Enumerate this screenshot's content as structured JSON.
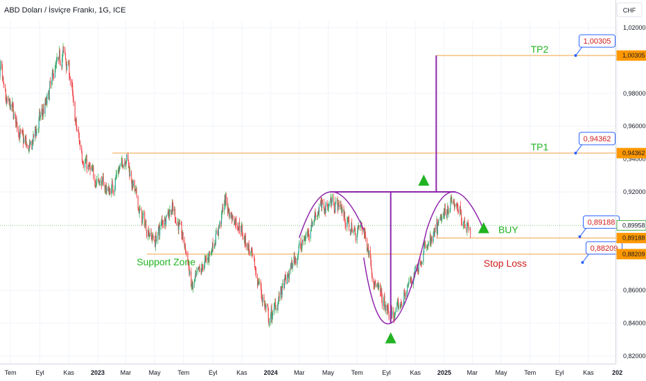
{
  "header": {
    "title": "ABD Doları / İsviçre Frankı, 1G, ICE",
    "currency": "CHF"
  },
  "chart_data": {
    "type": "candlestick",
    "instrument": "ABD Doları / İsviçre Frankı",
    "interval": "1G",
    "source": "ICE",
    "ylim": [
      0.815,
      1.025
    ],
    "y_ticks": [
      "1,02000",
      "0,98000",
      "0,96000",
      "0,94000",
      "0,92000",
      "0,86000",
      "0,84000",
      "0,82000"
    ],
    "y_tick_values": [
      1.02,
      0.98,
      0.96,
      0.94,
      0.92,
      0.86,
      0.84,
      0.82
    ],
    "x_ticks": [
      {
        "label": "Tem",
        "date": "2022-07-01",
        "bold": false
      },
      {
        "label": "Eyl",
        "date": "2022-09-01",
        "bold": false
      },
      {
        "label": "Kas",
        "date": "2022-11-01",
        "bold": false
      },
      {
        "label": "2023",
        "date": "2023-01-01",
        "bold": true
      },
      {
        "label": "Mar",
        "date": "2023-03-01",
        "bold": false
      },
      {
        "label": "May",
        "date": "2023-05-01",
        "bold": false
      },
      {
        "label": "Tem",
        "date": "2023-07-01",
        "bold": false
      },
      {
        "label": "Eyl",
        "date": "2023-09-01",
        "bold": false
      },
      {
        "label": "Kas",
        "date": "2023-11-01",
        "bold": false
      },
      {
        "label": "2024",
        "date": "2024-01-01",
        "bold": true
      },
      {
        "label": "Mar",
        "date": "2024-03-01",
        "bold": false
      },
      {
        "label": "May",
        "date": "2024-05-01",
        "bold": false
      },
      {
        "label": "Tem",
        "date": "2024-07-01",
        "bold": false
      },
      {
        "label": "Eyl",
        "date": "2024-09-01",
        "bold": false
      },
      {
        "label": "Kas",
        "date": "2024-11-01",
        "bold": false
      },
      {
        "label": "2025",
        "date": "2025-01-01",
        "bold": true
      },
      {
        "label": "Mar",
        "date": "2025-03-01",
        "bold": false
      },
      {
        "label": "May",
        "date": "2025-05-01",
        "bold": false
      },
      {
        "label": "Tem",
        "date": "2025-07-01",
        "bold": false
      },
      {
        "label": "Eyl",
        "date": "2025-09-01",
        "bold": false
      },
      {
        "label": "Kas",
        "date": "2025-11-01",
        "bold": false
      },
      {
        "label": "202",
        "date": "2026-01-01",
        "bold": true
      }
    ],
    "price_path": [
      [
        "2022-06-01",
        0.965
      ],
      [
        "2022-06-10",
        0.995
      ],
      [
        "2022-06-20",
        0.975
      ],
      [
        "2022-07-05",
        0.97
      ],
      [
        "2022-07-20",
        0.955
      ],
      [
        "2022-08-10",
        0.945
      ],
      [
        "2022-08-25",
        0.96
      ],
      [
        "2022-09-15",
        0.975
      ],
      [
        "2022-10-01",
        0.995
      ],
      [
        "2022-10-20",
        1.005
      ],
      [
        "2022-11-01",
        0.995
      ],
      [
        "2022-11-15",
        0.96
      ],
      [
        "2022-12-01",
        0.94
      ],
      [
        "2022-12-20",
        0.93
      ],
      [
        "2023-01-10",
        0.925
      ],
      [
        "2023-01-25",
        0.92
      ],
      [
        "2023-02-10",
        0.93
      ],
      [
        "2023-03-01",
        0.943
      ],
      [
        "2023-03-15",
        0.925
      ],
      [
        "2023-04-01",
        0.905
      ],
      [
        "2023-04-20",
        0.895
      ],
      [
        "2023-05-01",
        0.89
      ],
      [
        "2023-05-20",
        0.905
      ],
      [
        "2023-06-05",
        0.91
      ],
      [
        "2023-06-20",
        0.9
      ],
      [
        "2023-07-05",
        0.885
      ],
      [
        "2023-07-18",
        0.86
      ],
      [
        "2023-08-01",
        0.87
      ],
      [
        "2023-08-20",
        0.88
      ],
      [
        "2023-09-10",
        0.895
      ],
      [
        "2023-09-25",
        0.915
      ],
      [
        "2023-10-10",
        0.905
      ],
      [
        "2023-10-25",
        0.9
      ],
      [
        "2023-11-10",
        0.89
      ],
      [
        "2023-11-25",
        0.875
      ],
      [
        "2023-12-10",
        0.86
      ],
      [
        "2023-12-28",
        0.84
      ],
      [
        "2024-01-15",
        0.855
      ],
      [
        "2024-02-01",
        0.865
      ],
      [
        "2024-02-20",
        0.88
      ],
      [
        "2024-03-10",
        0.89
      ],
      [
        "2024-03-25",
        0.9
      ],
      [
        "2024-04-10",
        0.91
      ],
      [
        "2024-04-25",
        0.912
      ],
      [
        "2024-05-10",
        0.915
      ],
      [
        "2024-05-28",
        0.91
      ],
      [
        "2024-06-10",
        0.9
      ],
      [
        "2024-06-25",
        0.895
      ],
      [
        "2024-07-10",
        0.9
      ],
      [
        "2024-07-25",
        0.885
      ],
      [
        "2024-08-05",
        0.865
      ],
      [
        "2024-08-20",
        0.855
      ],
      [
        "2024-09-05",
        0.845
      ],
      [
        "2024-09-20",
        0.845
      ],
      [
        "2024-10-05",
        0.855
      ],
      [
        "2024-10-20",
        0.865
      ],
      [
        "2024-11-05",
        0.875
      ],
      [
        "2024-11-20",
        0.885
      ],
      [
        "2024-12-05",
        0.89
      ],
      [
        "2024-12-20",
        0.9
      ],
      [
        "2025-01-05",
        0.91
      ],
      [
        "2025-01-15",
        0.915
      ],
      [
        "2025-01-25",
        0.91
      ],
      [
        "2025-02-05",
        0.905
      ],
      [
        "2025-02-15",
        0.9
      ],
      [
        "2025-02-25",
        0.9
      ]
    ],
    "current_price": {
      "label": "0,89958",
      "value": 0.89958
    },
    "levels": [
      {
        "name": "TP2",
        "label": "1,00305",
        "value": 1.00305,
        "start": "2024-12-15"
      },
      {
        "name": "TP1",
        "label": "0,94362",
        "value": 0.94362,
        "start": "2023-02-01"
      },
      {
        "name": "BUY",
        "label": "0,89188",
        "value": 0.89188,
        "start": "2024-12-15"
      },
      {
        "name": "Stop Loss",
        "label": "0,88209",
        "value": 0.88209,
        "start": "2023-04-15"
      }
    ],
    "annotations": {
      "tp2_text": "TP2",
      "tp1_text": "TP1",
      "buy_text": "BUY",
      "stop_text": "Stop Loss",
      "support_text": "Support Zone",
      "tp2_callout": "1,00305",
      "tp1_callout": "0,94362",
      "buy_callout": "0,89188",
      "stop_callout": "0,88209"
    },
    "pattern": {
      "type": "cup-and-handle",
      "neckline": 0.92,
      "neckline_start": "2024-05-05",
      "neckline_end": "2025-01-25",
      "cup_bottom": 0.84,
      "cup_bottom_date": "2024-09-10",
      "target": 1.00305,
      "target_date": "2024-12-15",
      "arcs": [
        {
          "start": [
            "2024-03-01",
            0.892
          ],
          "peak": [
            "2024-05-05",
            0.92
          ],
          "end": [
            "2024-07-15",
            0.897
          ]
        },
        {
          "start": [
            "2024-07-15",
            0.88
          ],
          "trough": [
            "2024-09-10",
            0.84
          ],
          "end": [
            "2024-11-25",
            0.897
          ]
        },
        {
          "start": [
            "2024-11-25",
            0.897
          ],
          "peak": [
            "2025-01-20",
            0.92
          ],
          "end": [
            "2025-03-25",
            0.897
          ]
        }
      ]
    }
  }
}
